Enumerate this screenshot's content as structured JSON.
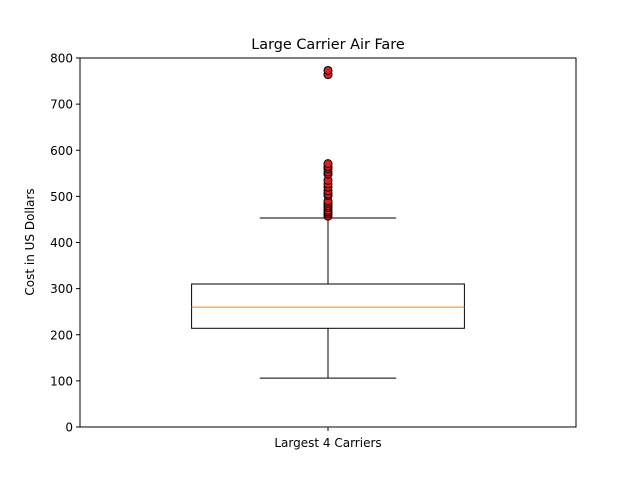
{
  "chart_data": {
    "type": "box",
    "title": "Large Carrier Air Fare",
    "xlabel": "",
    "ylabel": "Cost in US Dollars",
    "categories": [
      "Largest 4 Carriers"
    ],
    "ylim": [
      0,
      800
    ],
    "yticks": [
      0,
      100,
      200,
      300,
      400,
      500,
      600,
      700,
      800
    ],
    "grid": false,
    "legend": "none",
    "boxes": [
      {
        "category": "Largest 4 Carriers",
        "whisker_low": 106,
        "q1": 214,
        "median": 260,
        "q3": 310,
        "whisker_high": 453,
        "outliers": [
          457,
          462,
          466,
          470,
          476,
          480,
          485,
          490,
          502,
          505,
          512,
          520,
          527,
          535,
          548,
          553,
          560,
          565,
          571,
          764,
          773
        ]
      }
    ]
  },
  "colors": {
    "box": "#000000",
    "median": "#ff7f0e",
    "outlier_fill": "#e41a1c",
    "outlier_edge": "#000000"
  }
}
